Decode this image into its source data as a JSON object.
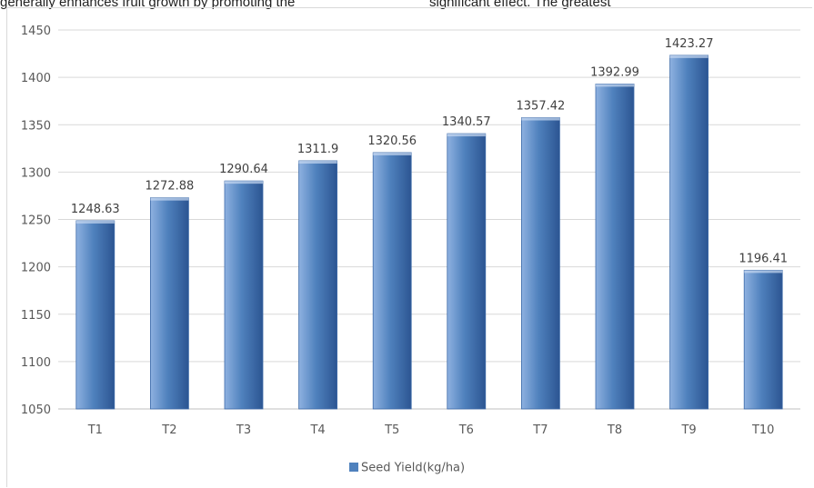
{
  "background_text": {
    "left": "generally enhances fruit growth by promoting the",
    "right": "significant effect. The greatest"
  },
  "chart_data": {
    "type": "bar",
    "title": "",
    "xlabel": "",
    "ylabel": "",
    "categories": [
      "T1",
      "T2",
      "T3",
      "T4",
      "T5",
      "T6",
      "T7",
      "T8",
      "T9",
      "T10"
    ],
    "series": [
      {
        "name": "Seed Yield(kg/ha)",
        "values": [
          1248.63,
          1272.88,
          1290.64,
          1311.9,
          1320.56,
          1340.57,
          1357.42,
          1392.99,
          1423.27,
          1196.41
        ],
        "labels": [
          "1248.63",
          "1272.88",
          "1290.64",
          "1311.9",
          "1320.56",
          "1340.57",
          "1357.42",
          "1392.99",
          "1423.27",
          "1196.41"
        ]
      }
    ],
    "ylim": [
      1050,
      1450
    ],
    "yticks": [
      "1050",
      "1100",
      "1150",
      "1200",
      "1250",
      "1300",
      "1350",
      "1400",
      "1450"
    ],
    "grid": true,
    "legend_position": "bottom",
    "colors": {
      "bar_light": "#8eb1e0",
      "bar_mid": "#4f81bd",
      "bar_dark": "#2c5592",
      "gridline": "#d9d9d9"
    }
  }
}
